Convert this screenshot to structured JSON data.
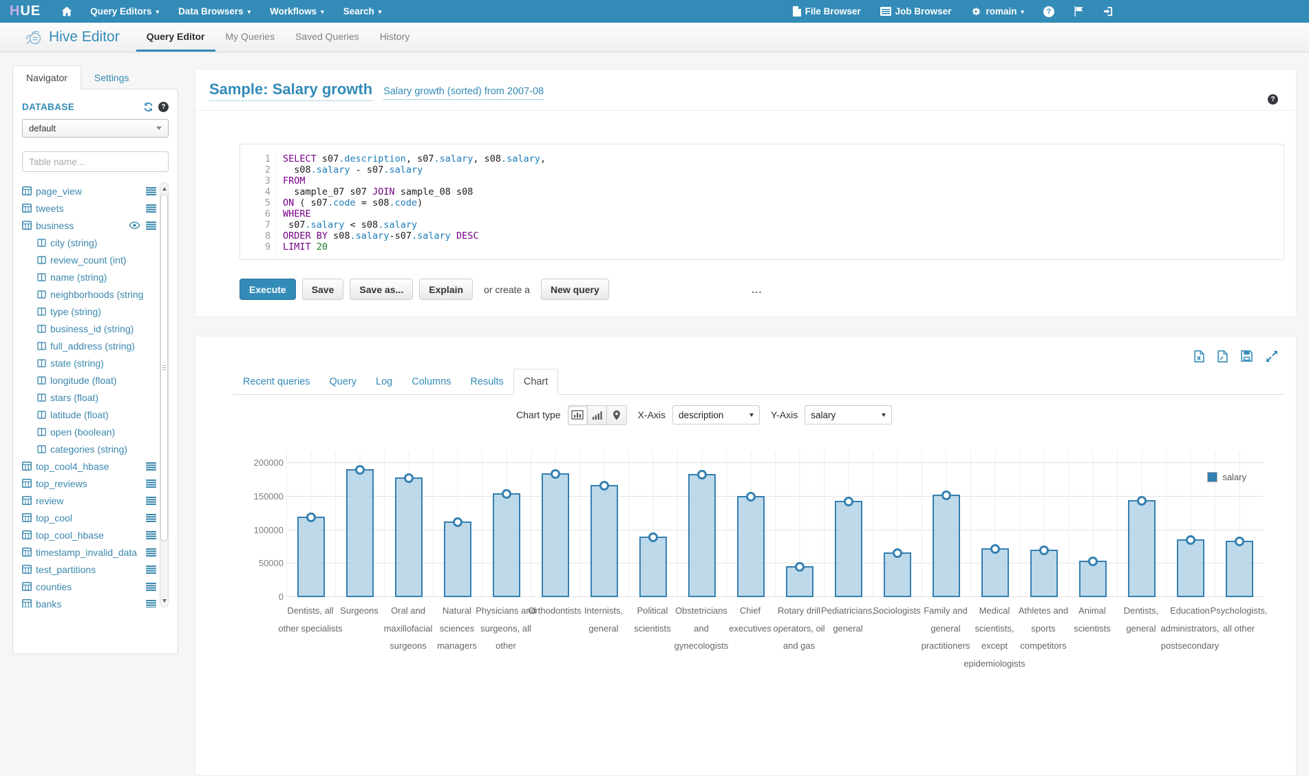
{
  "colors": {
    "accent": "#338bb8",
    "bar_fill": "#aecfe3",
    "bar_border": "#3480b1"
  },
  "navbar": {
    "logo_text": "HUE",
    "menus": [
      {
        "label": "Query Editors"
      },
      {
        "label": "Data Browsers"
      },
      {
        "label": "Workflows"
      },
      {
        "label": "Search"
      }
    ],
    "file_browser": "File Browser",
    "job_browser": "Job Browser",
    "user": "romain"
  },
  "subheader": {
    "app_title": "Hive Editor",
    "tabs": [
      {
        "label": "Query Editor",
        "active": true
      },
      {
        "label": "My Queries",
        "active": false
      },
      {
        "label": "Saved Queries",
        "active": false
      },
      {
        "label": "History",
        "active": false
      }
    ]
  },
  "sidebar": {
    "tabs": [
      {
        "label": "Navigator",
        "active": true
      },
      {
        "label": "Settings",
        "active": false
      }
    ],
    "database_label": "DATABASE",
    "database_selected": "default",
    "filter_placeholder": "Table name...",
    "items": [
      {
        "kind": "table",
        "name": "page_view",
        "icons": [
          "list"
        ]
      },
      {
        "kind": "table",
        "name": "tweets",
        "icons": [
          "list"
        ]
      },
      {
        "kind": "table",
        "name": "business",
        "icons": [
          "eye",
          "list"
        ]
      },
      {
        "kind": "column",
        "name": "city (string)"
      },
      {
        "kind": "column",
        "name": "review_count (int)"
      },
      {
        "kind": "column",
        "name": "name (string)"
      },
      {
        "kind": "column",
        "name": "neighborhoods (string"
      },
      {
        "kind": "column",
        "name": "type (string)"
      },
      {
        "kind": "column",
        "name": "business_id (string)"
      },
      {
        "kind": "column",
        "name": "full_address (string)"
      },
      {
        "kind": "column",
        "name": "state (string)"
      },
      {
        "kind": "column",
        "name": "longitude (float)"
      },
      {
        "kind": "column",
        "name": "stars (float)"
      },
      {
        "kind": "column",
        "name": "latitude (float)"
      },
      {
        "kind": "column",
        "name": "open (boolean)"
      },
      {
        "kind": "column",
        "name": "categories (string)"
      },
      {
        "kind": "table",
        "name": "top_cool4_hbase",
        "icons": [
          "list"
        ]
      },
      {
        "kind": "table",
        "name": "top_reviews",
        "icons": [
          "list"
        ]
      },
      {
        "kind": "table",
        "name": "review",
        "icons": [
          "list"
        ]
      },
      {
        "kind": "table",
        "name": "top_cool",
        "icons": [
          "list"
        ]
      },
      {
        "kind": "table",
        "name": "top_cool_hbase",
        "icons": [
          "list"
        ]
      },
      {
        "kind": "table",
        "name": "timestamp_invalid_data",
        "icons": [
          "list"
        ]
      },
      {
        "kind": "table",
        "name": "test_partitions",
        "icons": [
          "list"
        ]
      },
      {
        "kind": "table",
        "name": "counties",
        "icons": [
          "list"
        ]
      },
      {
        "kind": "table",
        "name": "banks",
        "icons": [
          "list"
        ]
      }
    ]
  },
  "query": {
    "title": "Sample: Salary growth",
    "subtitle_link": "Salary growth (sorted) from 2007-08",
    "code": [
      {
        "n": "1",
        "tokens": [
          [
            "kw",
            "SELECT"
          ],
          [
            "pl",
            " s07"
          ],
          [
            "pr",
            ".description"
          ],
          [
            "pl",
            ", s07"
          ],
          [
            "pr",
            ".salary"
          ],
          [
            "pl",
            ", s08"
          ],
          [
            "pr",
            ".salary"
          ],
          [
            "pl",
            ","
          ]
        ]
      },
      {
        "n": "2",
        "tokens": [
          [
            "pl",
            "  s08"
          ],
          [
            "pr",
            ".salary"
          ],
          [
            "pl",
            " - s07"
          ],
          [
            "pr",
            ".salary"
          ]
        ]
      },
      {
        "n": "3",
        "tokens": [
          [
            "kw",
            "FROM"
          ]
        ]
      },
      {
        "n": "4",
        "tokens": [
          [
            "pl",
            "  sample_07 s07 "
          ],
          [
            "kw",
            "JOIN"
          ],
          [
            "pl",
            " sample_08 s08"
          ]
        ]
      },
      {
        "n": "5",
        "tokens": [
          [
            "kw",
            "ON"
          ],
          [
            "pl",
            " ( s07"
          ],
          [
            "pr",
            ".code"
          ],
          [
            "pl",
            " = s08"
          ],
          [
            "pr",
            ".code"
          ],
          [
            "pl",
            ")"
          ]
        ]
      },
      {
        "n": "6",
        "tokens": [
          [
            "kw",
            "WHERE"
          ]
        ]
      },
      {
        "n": "7",
        "tokens": [
          [
            "pl",
            " s07"
          ],
          [
            "pr",
            ".salary"
          ],
          [
            "pl",
            " < s08"
          ],
          [
            "pr",
            ".salary"
          ]
        ]
      },
      {
        "n": "8",
        "tokens": [
          [
            "kw",
            "ORDER BY"
          ],
          [
            "pl",
            " s08"
          ],
          [
            "pr",
            ".salary"
          ],
          [
            "pl",
            "-s07"
          ],
          [
            "pr",
            ".salary"
          ],
          [
            "kw",
            " DESC"
          ]
        ]
      },
      {
        "n": "9",
        "tokens": [
          [
            "kw",
            "LIMIT"
          ],
          [
            "nu",
            " 20"
          ]
        ]
      }
    ],
    "buttons": {
      "execute": "Execute",
      "save": "Save",
      "save_as": "Save as...",
      "explain": "Explain",
      "or_create_text": "or create a",
      "new_query": "New query"
    },
    "resize_handle": "..."
  },
  "results": {
    "tabs": [
      {
        "label": "Recent queries",
        "active": false
      },
      {
        "label": "Query",
        "active": false
      },
      {
        "label": "Log",
        "active": false
      },
      {
        "label": "Columns",
        "active": false
      },
      {
        "label": "Results",
        "active": false
      },
      {
        "label": "Chart",
        "active": true
      }
    ],
    "controls": {
      "chart_type_label": "Chart type",
      "x_axis_label": "X-Axis",
      "x_axis_value": "description",
      "y_axis_label": "Y-Axis",
      "y_axis_value": "salary"
    }
  },
  "chart_data": {
    "type": "bar",
    "title": "",
    "xlabel": "",
    "ylabel": "",
    "categories": [
      "Dentists, all other specialists",
      "Surgeons",
      "Oral and maxillofacial surgeons",
      "Natural sciences managers",
      "Physicians and surgeons, all other",
      "Orthodontists",
      "Internists, general",
      "Political scientists",
      "Obstetricians and gynecologists",
      "Chief executives",
      "Rotary drill operators, oil and gas",
      "Pediatricians, general",
      "Sociologists",
      "Family and general practitioners",
      "Medical scientists, except epidemiologists",
      "Athletes and sports competitors",
      "Animal scientists",
      "Dentists, general",
      "Education administrators, postsecondary",
      "Psychologists, all other"
    ],
    "series": [
      {
        "name": "salary",
        "values": [
          120000,
          191000,
          178000,
          113000,
          155000,
          185000,
          167000,
          90000,
          184000,
          151000,
          46000,
          144000,
          67000,
          153000,
          73000,
          71000,
          54000,
          145000,
          86000,
          84000
        ]
      }
    ],
    "ylim": [
      0,
      200000
    ],
    "yticks": [
      0,
      50000,
      100000,
      150000,
      200000
    ],
    "grid": true,
    "legend": [
      "salary"
    ],
    "legend_position": "top-right"
  }
}
